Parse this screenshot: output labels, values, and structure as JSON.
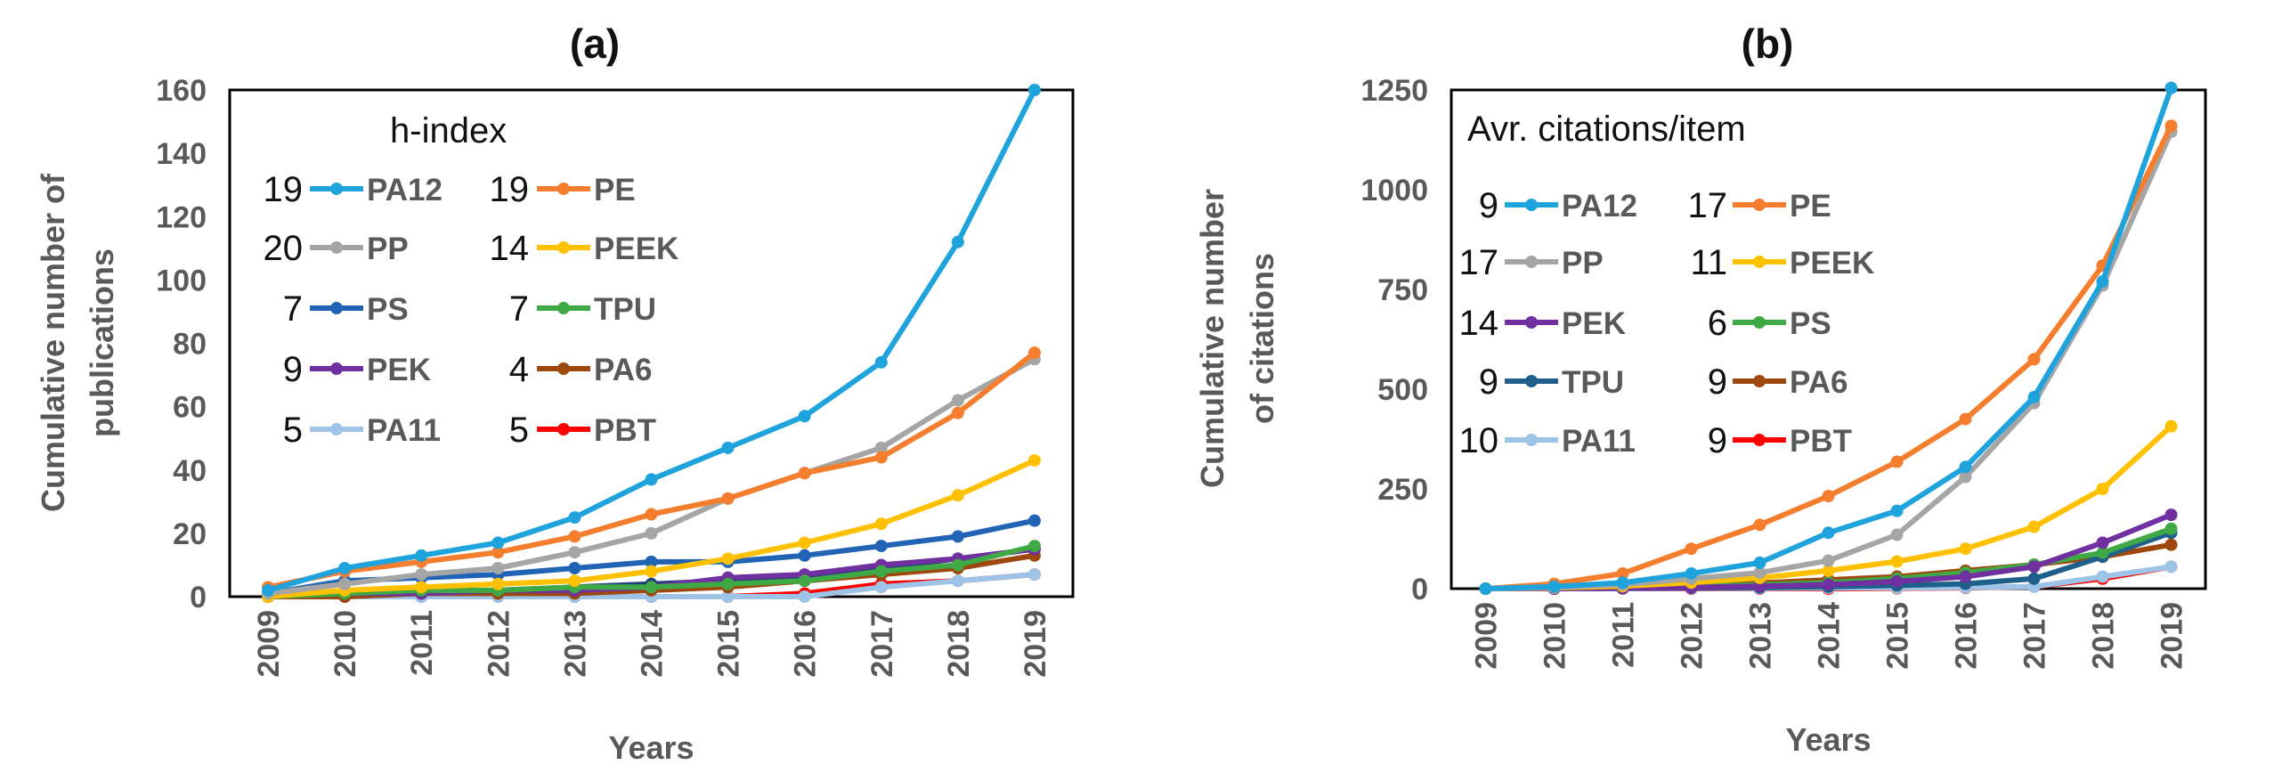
{
  "chart_data": [
    {
      "type": "line",
      "title": "(a)",
      "xlabel": "Years",
      "ylabel": "Cumulative number of publications",
      "ylabel_lines": [
        "Cumulative number of",
        "publications"
      ],
      "ylim": [
        0,
        160
      ],
      "yticks": [
        0,
        20,
        40,
        60,
        80,
        100,
        120,
        140,
        160
      ],
      "legend_title": "h-index",
      "categories": [
        "2009",
        "2010",
        "2011",
        "2012",
        "2013",
        "2014",
        "2015",
        "2016",
        "2017",
        "2018",
        "2019"
      ],
      "series": [
        {
          "name": "PA12",
          "metric": "19",
          "color": "#1ea3dd",
          "values": [
            2,
            9,
            13,
            17,
            25,
            37,
            47,
            57,
            74,
            112,
            160
          ]
        },
        {
          "name": "PE",
          "metric": "19",
          "color": "#f47d2e",
          "values": [
            3,
            8,
            11,
            14,
            19,
            26,
            31,
            39,
            44,
            58,
            77
          ]
        },
        {
          "name": "PP",
          "metric": "20",
          "color": "#a5a5a5",
          "values": [
            1,
            4,
            7,
            9,
            14,
            20,
            31,
            39,
            47,
            62,
            75
          ]
        },
        {
          "name": "PEEK",
          "metric": "14",
          "color": "#ffc000",
          "values": [
            0,
            2,
            3,
            4,
            5,
            8,
            12,
            17,
            23,
            32,
            43
          ]
        },
        {
          "name": "PS",
          "metric": "7",
          "color": "#2164b6",
          "values": [
            1,
            5,
            6,
            7,
            9,
            11,
            11,
            13,
            16,
            19,
            24
          ]
        },
        {
          "name": "TPU",
          "metric": "7",
          "color": "#3faa45",
          "values": [
            0,
            1,
            2,
            2,
            3,
            3,
            4,
            5,
            8,
            10,
            16
          ]
        },
        {
          "name": "PEK",
          "metric": "9",
          "color": "#7030a0",
          "values": [
            0,
            1,
            1,
            2,
            2,
            3,
            6,
            7,
            10,
            12,
            15
          ]
        },
        {
          "name": "PA6",
          "metric": "4",
          "color": "#9e480e",
          "values": [
            0,
            0,
            1,
            1,
            1,
            2,
            3,
            5,
            7,
            9,
            13
          ]
        },
        {
          "name": "PEK",
          "metric": "",
          "color": "#1f3f7a",
          "values": [
            0,
            1,
            1,
            2,
            3,
            4,
            5,
            6,
            9,
            12,
            15
          ]
        },
        {
          "name": "PA11",
          "metric": "5",
          "color": "#9dc3e6",
          "values": [
            0,
            0,
            0,
            0,
            0,
            0,
            0,
            0,
            3,
            5,
            7
          ]
        },
        {
          "name": "PBT",
          "metric": "5",
          "color": "#ff0000",
          "values": [
            0,
            0,
            0,
            0,
            0,
            0,
            0,
            1,
            4,
            5,
            7
          ]
        }
      ],
      "legend_rows": [
        [
          {
            "metric": "19",
            "name": "PA12",
            "color": "#1ea3dd"
          },
          {
            "metric": "19",
            "name": "PE",
            "color": "#f47d2e"
          }
        ],
        [
          {
            "metric": "20",
            "name": "PP",
            "color": "#a5a5a5"
          },
          {
            "metric": "14",
            "name": "PEEK",
            "color": "#ffc000"
          }
        ],
        [
          {
            "metric": "7",
            "name": "PS",
            "color": "#2164b6"
          },
          {
            "metric": "7",
            "name": "TPU",
            "color": "#3faa45"
          }
        ],
        [
          {
            "metric": "9",
            "name": "PEK",
            "color": "#7030a0"
          },
          {
            "metric": "4",
            "name": "PA6",
            "color": "#9e480e"
          }
        ],
        [
          {
            "metric": "5",
            "name": "PA11",
            "color": "#9dc3e6"
          },
          {
            "metric": "5",
            "name": "PBT",
            "color": "#ff0000"
          }
        ]
      ]
    },
    {
      "type": "line",
      "title": "(b)",
      "xlabel": "Years",
      "ylabel": "Cumulative number of citations",
      "ylabel_lines": [
        "Cumulative number",
        "of citations"
      ],
      "ylim": [
        0,
        1250
      ],
      "yticks": [
        0,
        250,
        500,
        750,
        1000,
        1250
      ],
      "legend_title": "Avr. citations/item",
      "categories": [
        "2009",
        "2010",
        "2011",
        "2012",
        "2013",
        "2014",
        "2015",
        "2016",
        "2017",
        "2018",
        "2019"
      ],
      "series": [
        {
          "name": "PA12",
          "metric": "9",
          "color": "#1ea3dd",
          "values": [
            0,
            5,
            15,
            38,
            65,
            140,
            195,
            305,
            480,
            770,
            1255
          ]
        },
        {
          "name": "PE",
          "metric": "17",
          "color": "#f47d2e",
          "values": [
            0,
            12,
            38,
            100,
            160,
            232,
            318,
            425,
            575,
            810,
            1160
          ]
        },
        {
          "name": "PP",
          "metric": "17",
          "color": "#a5a5a5",
          "values": [
            0,
            3,
            10,
            25,
            40,
            70,
            135,
            280,
            465,
            760,
            1145
          ]
        },
        {
          "name": "PEEK",
          "metric": "11",
          "color": "#ffc000",
          "values": [
            0,
            2,
            6,
            15,
            27,
            45,
            68,
            100,
            155,
            250,
            407
          ]
        },
        {
          "name": "PEK",
          "metric": "14",
          "color": "#7030a0",
          "values": [
            0,
            0,
            1,
            3,
            6,
            10,
            18,
            30,
            55,
            115,
            185
          ]
        },
        {
          "name": "PS",
          "metric": "6",
          "color": "#3faa45",
          "values": [
            0,
            0,
            2,
            5,
            10,
            15,
            25,
            40,
            60,
            90,
            150
          ]
        },
        {
          "name": "TPU",
          "metric": "9",
          "color": "#1f5f8b",
          "values": [
            0,
            0,
            1,
            2,
            3,
            5,
            8,
            12,
            25,
            80,
            140
          ]
        },
        {
          "name": "PA6",
          "metric": "9",
          "color": "#9e480e",
          "values": [
            0,
            1,
            3,
            8,
            14,
            22,
            30,
            45,
            60,
            80,
            110
          ]
        },
        {
          "name": "PA11",
          "metric": "10",
          "color": "#9dc3e6",
          "values": [
            0,
            0,
            0,
            1,
            1,
            2,
            2,
            3,
            5,
            30,
            55
          ]
        },
        {
          "name": "PBT",
          "metric": "9",
          "color": "#ff0000",
          "values": [
            0,
            0,
            0,
            0,
            0,
            0,
            1,
            2,
            5,
            25,
            55
          ]
        }
      ],
      "legend_rows": [
        [
          {
            "metric": "9",
            "name": "PA12",
            "color": "#1ea3dd"
          },
          {
            "metric": "17",
            "name": "PE",
            "color": "#f47d2e"
          }
        ],
        [
          {
            "metric": "17",
            "name": "PP",
            "color": "#a5a5a5"
          },
          {
            "metric": "11",
            "name": "PEEK",
            "color": "#ffc000"
          }
        ],
        [
          {
            "metric": "14",
            "name": "PEK",
            "color": "#7030a0"
          },
          {
            "metric": "6",
            "name": "PS",
            "color": "#3faa45"
          }
        ],
        [
          {
            "metric": "9",
            "name": "TPU",
            "color": "#1f5f8b"
          },
          {
            "metric": "9",
            "name": "PA6",
            "color": "#9e480e"
          }
        ],
        [
          {
            "metric": "10",
            "name": "PA11",
            "color": "#9dc3e6"
          },
          {
            "metric": "9",
            "name": "PBT",
            "color": "#ff0000"
          }
        ]
      ]
    }
  ]
}
